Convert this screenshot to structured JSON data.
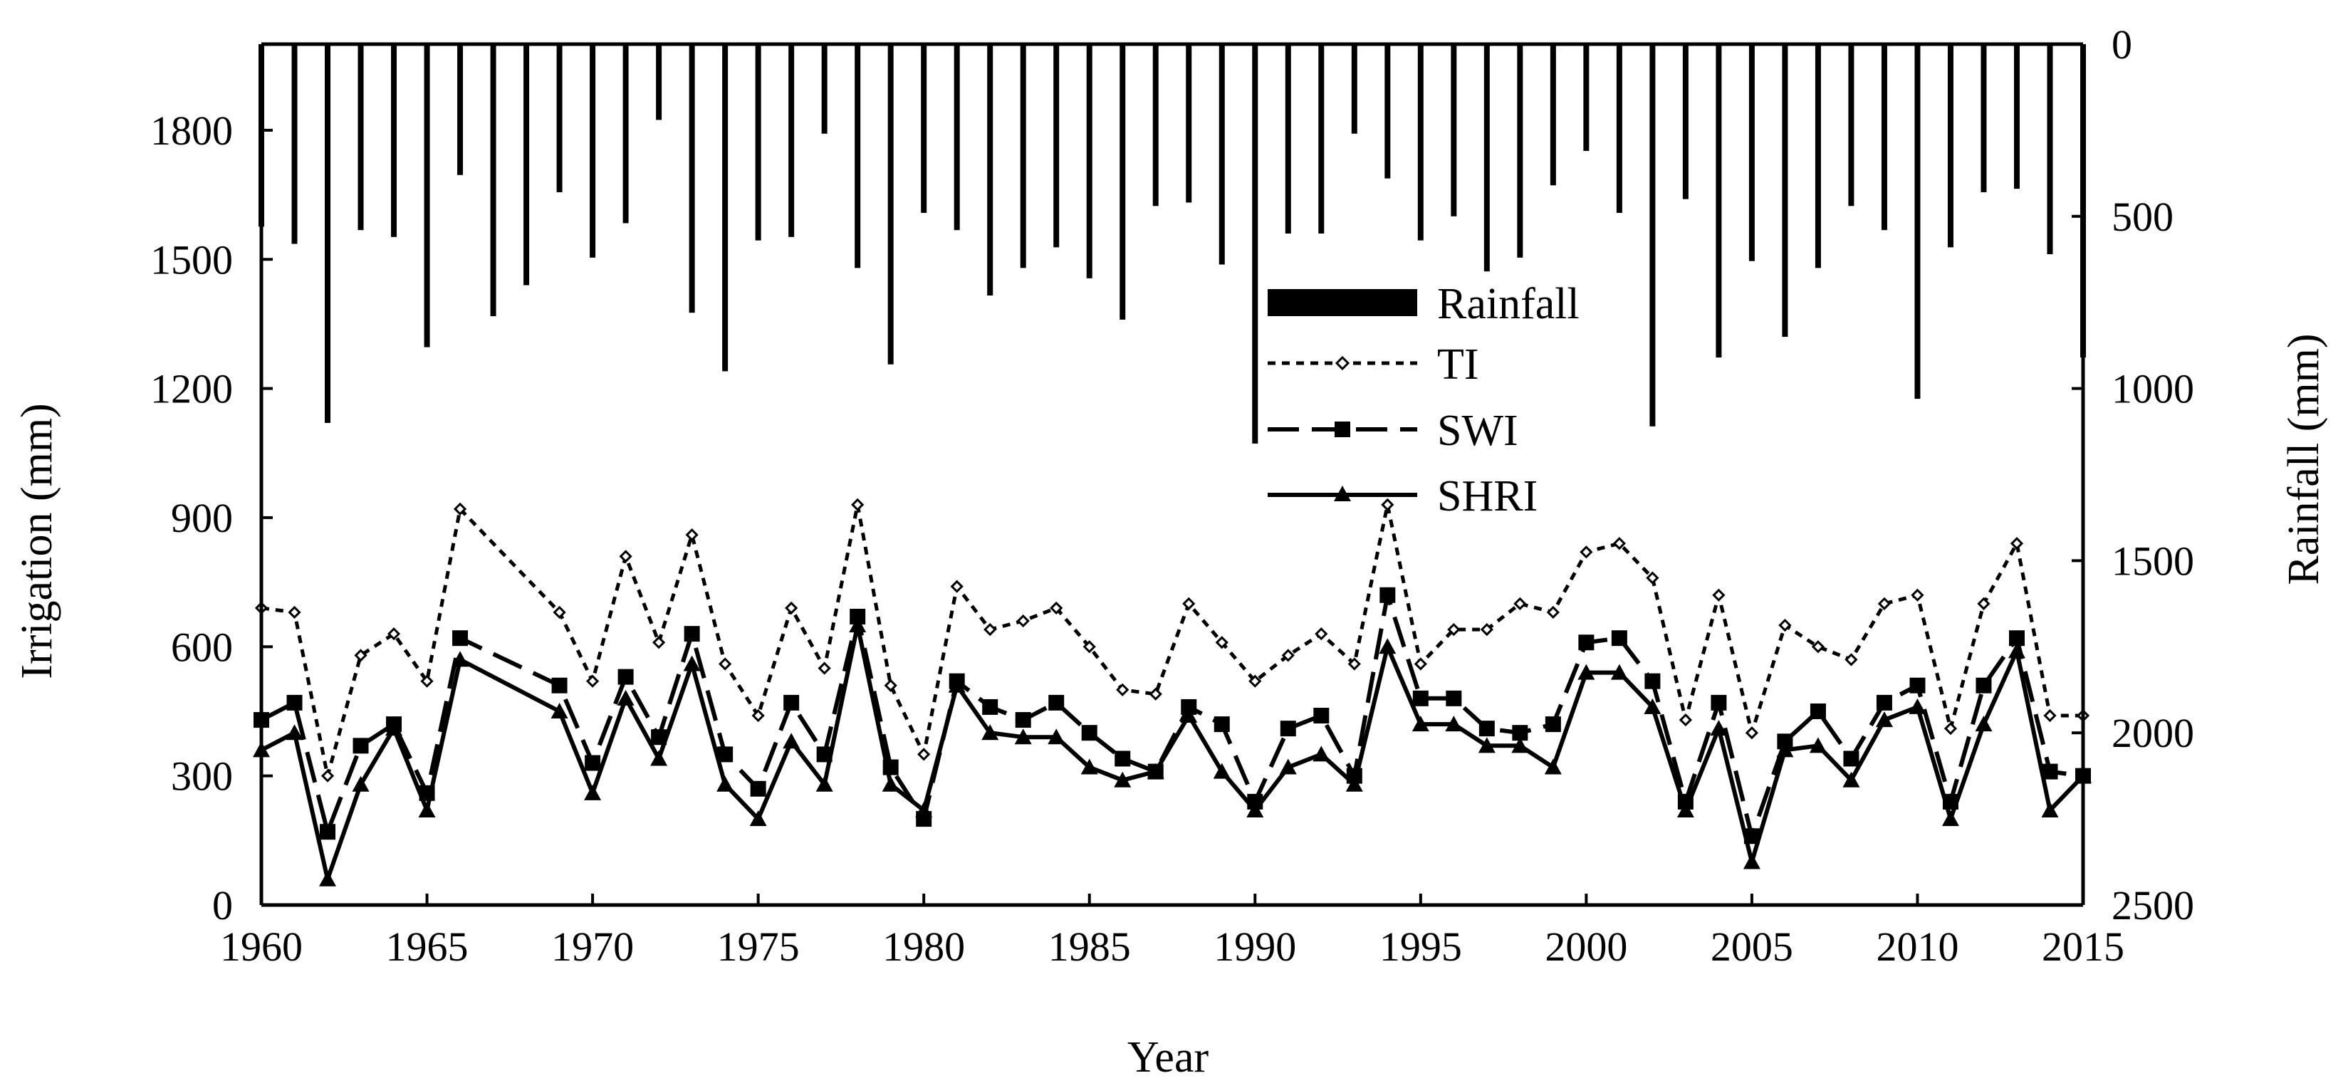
{
  "chart_data": {
    "type": "line",
    "title": "",
    "xlabel": "Year",
    "ylabel_left": "Irrigation (mm)",
    "ylabel_right": "Rainfall (mm)",
    "xlim": [
      1960,
      2015
    ],
    "ylim_left": [
      0,
      2000
    ],
    "ylim_right": [
      2500,
      0
    ],
    "right_axis_inverted": true,
    "x_ticks": [
      1960,
      1965,
      1970,
      1975,
      1980,
      1985,
      1990,
      1995,
      2000,
      2005,
      2010,
      2015
    ],
    "y_ticks_left": [
      0,
      300,
      600,
      900,
      1200,
      1500,
      1800
    ],
    "y_ticks_right": [
      0,
      500,
      1000,
      1500,
      2000,
      2500
    ],
    "grid": false,
    "legend_position": "center",
    "legend": [
      "Rainfall",
      "TI",
      "SWI",
      "SHRI"
    ],
    "rainfall": {
      "name": "Rainfall",
      "type": "bar",
      "axis": "right",
      "years": [
        1960,
        1961,
        1962,
        1963,
        1964,
        1965,
        1966,
        1967,
        1968,
        1969,
        1970,
        1971,
        1972,
        1973,
        1974,
        1975,
        1976,
        1977,
        1978,
        1979,
        1980,
        1981,
        1982,
        1983,
        1984,
        1985,
        1986,
        1987,
        1988,
        1989,
        1990,
        1991,
        1992,
        1993,
        1994,
        1995,
        1996,
        1997,
        1998,
        1999,
        2000,
        2001,
        2002,
        2003,
        2004,
        2005,
        2006,
        2007,
        2008,
        2009,
        2010,
        2011,
        2012,
        2013,
        2014,
        2015
      ],
      "values": [
        530,
        580,
        1100,
        540,
        560,
        880,
        380,
        790,
        700,
        430,
        620,
        520,
        220,
        780,
        950,
        570,
        560,
        260,
        650,
        930,
        490,
        540,
        730,
        650,
        590,
        680,
        800,
        470,
        460,
        640,
        1160,
        550,
        550,
        260,
        390,
        570,
        500,
        660,
        620,
        410,
        310,
        490,
        1110,
        450,
        910,
        630,
        850,
        650,
        470,
        540,
        1030,
        590,
        430,
        420,
        610,
        910
      ]
    },
    "series": [
      {
        "name": "TI",
        "style": "short-dash",
        "marker": "diamond",
        "years": [
          1960,
          1961,
          1962,
          1963,
          1964,
          1965,
          1966,
          1969,
          1970,
          1971,
          1972,
          1973,
          1974,
          1975,
          1976,
          1977,
          1978,
          1979,
          1980,
          1981,
          1982,
          1983,
          1984,
          1985,
          1986,
          1987,
          1988,
          1989,
          1990,
          1991,
          1992,
          1993,
          1994,
          1995,
          1996,
          1997,
          1998,
          1999,
          2000,
          2001,
          2002,
          2003,
          2004,
          2005,
          2006,
          2007,
          2008,
          2009,
          2010,
          2011,
          2012,
          2013,
          2014,
          2015
        ],
        "values": [
          690,
          680,
          300,
          580,
          630,
          520,
          920,
          680,
          520,
          810,
          610,
          860,
          560,
          440,
          690,
          550,
          930,
          510,
          350,
          740,
          640,
          660,
          690,
          600,
          500,
          490,
          700,
          610,
          520,
          580,
          630,
          560,
          930,
          560,
          640,
          640,
          700,
          680,
          820,
          840,
          760,
          430,
          720,
          400,
          650,
          600,
          570,
          700,
          720,
          410,
          700,
          840,
          440,
          440
        ]
      },
      {
        "name": "SWI",
        "style": "long-dash",
        "marker": "square",
        "years": [
          1960,
          1961,
          1962,
          1963,
          1964,
          1965,
          1966,
          1969,
          1970,
          1971,
          1972,
          1973,
          1974,
          1975,
          1976,
          1977,
          1978,
          1979,
          1980,
          1981,
          1982,
          1983,
          1984,
          1985,
          1986,
          1987,
          1988,
          1989,
          1990,
          1991,
          1992,
          1993,
          1994,
          1995,
          1996,
          1997,
          1998,
          1999,
          2000,
          2001,
          2002,
          2003,
          2004,
          2005,
          2006,
          2007,
          2008,
          2009,
          2010,
          2011,
          2012,
          2013,
          2014,
          2015
        ],
        "values": [
          430,
          470,
          170,
          370,
          420,
          260,
          620,
          510,
          330,
          530,
          390,
          630,
          350,
          270,
          470,
          350,
          670,
          320,
          200,
          520,
          460,
          430,
          470,
          400,
          340,
          310,
          460,
          420,
          240,
          410,
          440,
          300,
          720,
          480,
          480,
          410,
          400,
          420,
          610,
          620,
          520,
          240,
          470,
          160,
          380,
          450,
          340,
          470,
          510,
          240,
          510,
          620,
          310,
          300
        ]
      },
      {
        "name": "SHRI",
        "style": "solid",
        "marker": "triangle",
        "years": [
          1960,
          1961,
          1962,
          1963,
          1964,
          1965,
          1966,
          1969,
          1970,
          1971,
          1972,
          1973,
          1974,
          1975,
          1976,
          1977,
          1978,
          1979,
          1980,
          1981,
          1982,
          1983,
          1984,
          1985,
          1986,
          1987,
          1988,
          1989,
          1990,
          1991,
          1992,
          1993,
          1994,
          1995,
          1996,
          1997,
          1998,
          1999,
          2000,
          2001,
          2002,
          2003,
          2004,
          2005,
          2006,
          2007,
          2008,
          2009,
          2010,
          2011,
          2012,
          2013,
          2014,
          2015
        ],
        "values": [
          360,
          400,
          60,
          280,
          410,
          220,
          570,
          450,
          260,
          480,
          340,
          560,
          280,
          200,
          380,
          280,
          650,
          280,
          220,
          510,
          400,
          390,
          390,
          320,
          290,
          310,
          440,
          310,
          220,
          320,
          350,
          280,
          600,
          420,
          420,
          370,
          370,
          320,
          540,
          540,
          460,
          220,
          410,
          100,
          360,
          370,
          290,
          430,
          460,
          200,
          420,
          590,
          220,
          300
        ]
      }
    ]
  }
}
